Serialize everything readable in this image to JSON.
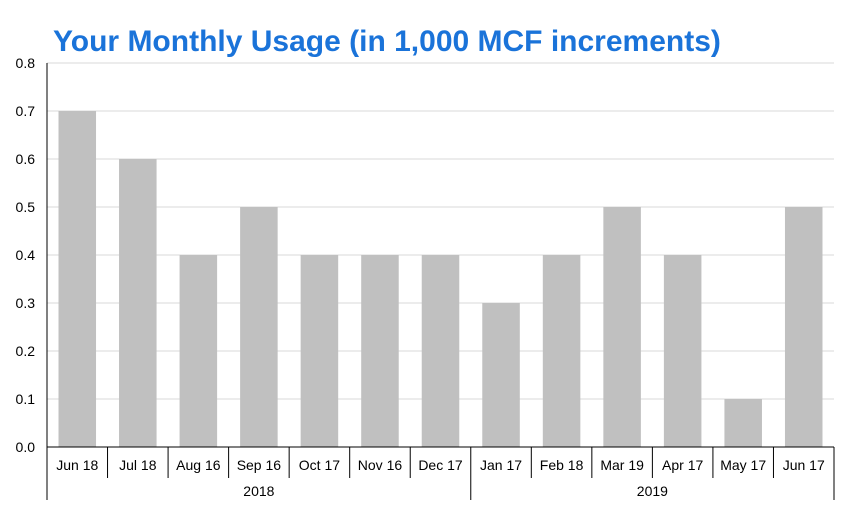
{
  "chart_data": {
    "type": "bar",
    "title": "Your Monthly Usage (in 1,000 MCF increments)",
    "xlabel": "",
    "ylabel": "",
    "categories": [
      "Jun 18",
      "Jul 18",
      "Aug 16",
      "Sep 16",
      "Oct 17",
      "Nov 16",
      "Dec 17",
      "Jan 17",
      "Feb 18",
      "Mar 19",
      "Apr 17",
      "May 17",
      "Jun 17"
    ],
    "values": [
      0.7,
      0.6,
      0.4,
      0.5,
      0.4,
      0.4,
      0.4,
      0.3,
      0.4,
      0.5,
      0.4,
      0.1,
      0.5
    ],
    "groups": [
      {
        "label": "2018",
        "count": 7
      },
      {
        "label": "2019",
        "count": 6
      }
    ],
    "ylim": [
      0,
      0.8
    ],
    "yticks": [
      "0.0",
      "0.1",
      "0.2",
      "0.3",
      "0.4",
      "0.5",
      "0.6",
      "0.7",
      "0.8"
    ],
    "grid": true,
    "legend": "none",
    "colors": {
      "bar": "#c0c0c0",
      "title": "#1a73d9",
      "grid": "#d9d9d9",
      "axis": "#000000"
    }
  }
}
